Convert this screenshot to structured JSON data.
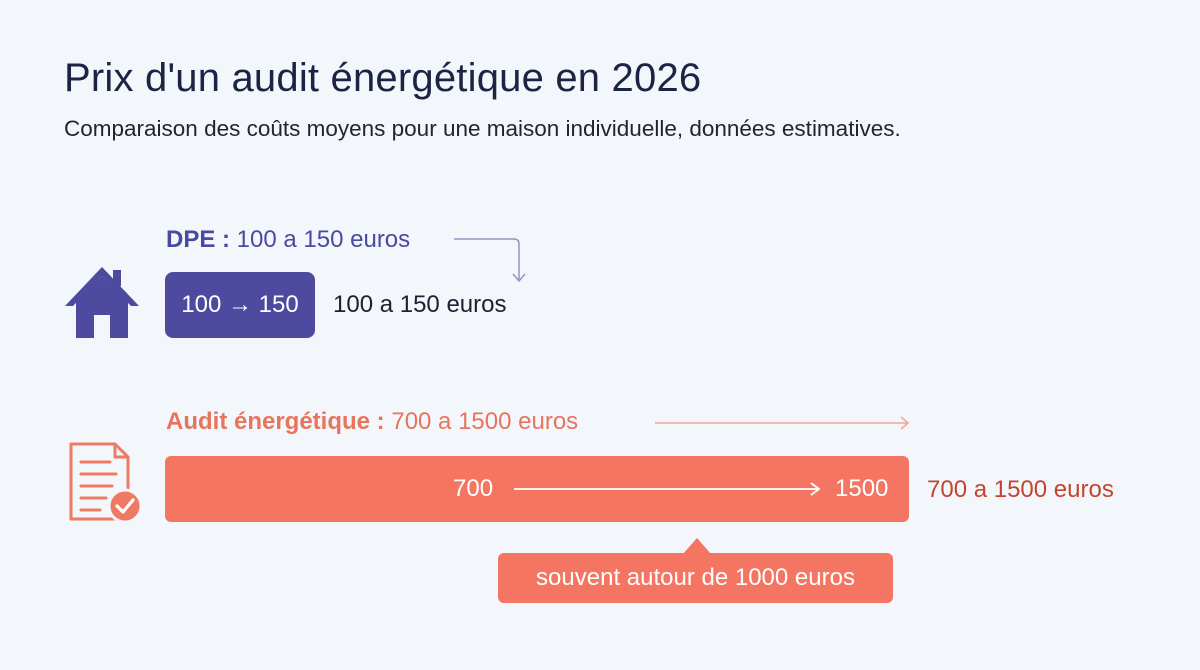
{
  "header": {
    "title": "Prix d'un audit énergétique en 2026",
    "subtitle": "Comparaison des coûts moyens pour une maison individuelle, données estimatives."
  },
  "dpe": {
    "label_strong": "DPE :",
    "label_range": " 100 a 150 euros",
    "box_text": "100 → 150",
    "range_text": "100 a 150 euros",
    "icon": "house-icon"
  },
  "audit": {
    "label_strong": "Audit énergétique :",
    "label_range": " 700 a 1500 euros",
    "bar_min": "700",
    "bar_max": "1500",
    "range_text": "700 a 1500 euros",
    "callout": "souvent autour de 1000 euros",
    "icon": "document-check-icon"
  },
  "colors": {
    "background": "#f3f6fa",
    "dpe": "#4d4a9f",
    "audit": "#f47561",
    "audit_text": "#c2462f",
    "title": "#1c2444"
  },
  "chart_data": {
    "type": "bar",
    "categories": [
      "DPE",
      "Audit énergétique"
    ],
    "series": [
      {
        "min": 100,
        "max": 150
      },
      {
        "min": 700,
        "max": 1500,
        "typical": 1000
      }
    ],
    "unit": "euros"
  }
}
